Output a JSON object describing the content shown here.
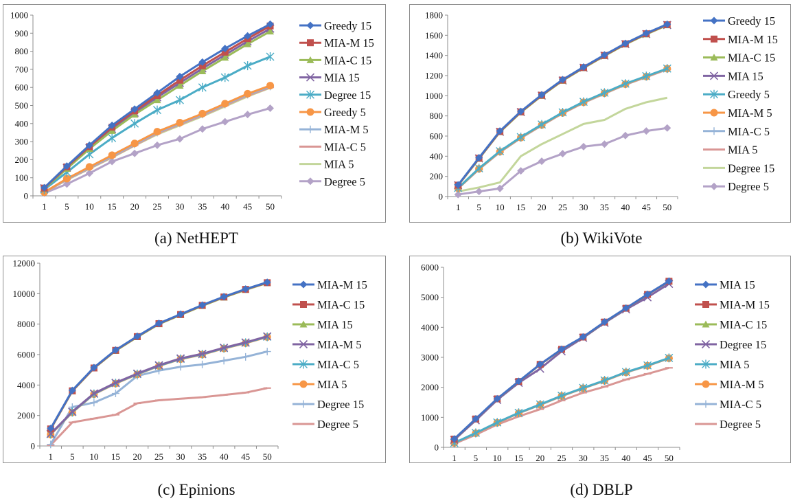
{
  "colors": {
    "blue": "#4472c4",
    "red": "#c0504d",
    "green": "#9bbb59",
    "purple": "#8064a2",
    "cyan": "#4bacc6",
    "orange": "#f79646",
    "lightblue": "#95b3d7",
    "pink": "#d99694",
    "lightgreen": "#c3d69b",
    "lavender": "#b3a2c7",
    "axis": "#8c8c8c"
  },
  "captions": [
    "(a) NetHEPT",
    "(b) WikiVote",
    "(c) Epinions",
    "(d) DBLP"
  ],
  "chart_data": [
    {
      "type": "line",
      "x": [
        "1",
        "5",
        "10",
        "15",
        "20",
        "25",
        "30",
        "35",
        "40",
        "45",
        "50"
      ],
      "ylim": [
        0,
        1000
      ],
      "yticks": [
        0,
        100,
        200,
        300,
        400,
        500,
        600,
        700,
        800,
        900,
        1000
      ],
      "legend_position": "right",
      "series": [
        {
          "name": "Greedy 15",
          "color": "blue",
          "marker": "diamond",
          "values": [
            45,
            165,
            280,
            390,
            480,
            570,
            660,
            740,
            815,
            885,
            950
          ]
        },
        {
          "name": "MIA-M 15",
          "color": "red",
          "marker": "square",
          "values": [
            43,
            160,
            272,
            380,
            470,
            555,
            640,
            720,
            795,
            870,
            940
          ]
        },
        {
          "name": "MIA-C 15",
          "color": "green",
          "marker": "triangle",
          "values": [
            40,
            150,
            260,
            360,
            450,
            530,
            610,
            690,
            765,
            840,
            910
          ]
        },
        {
          "name": "MIA 15",
          "color": "purple",
          "marker": "x",
          "values": [
            42,
            155,
            265,
            370,
            460,
            545,
            625,
            705,
            780,
            855,
            925
          ]
        },
        {
          "name": "Degree 15",
          "color": "cyan",
          "marker": "star",
          "values": [
            35,
            130,
            230,
            320,
            400,
            475,
            530,
            600,
            655,
            720,
            770
          ]
        },
        {
          "name": "Greedy 5",
          "color": "orange",
          "marker": "circle",
          "values": [
            20,
            95,
            160,
            225,
            290,
            355,
            405,
            455,
            510,
            565,
            610
          ]
        },
        {
          "name": "MIA-M 5",
          "color": "lightblue",
          "marker": "plus",
          "values": [
            20,
            92,
            155,
            220,
            285,
            350,
            400,
            450,
            505,
            560,
            605
          ]
        },
        {
          "name": "MIA-C 5",
          "color": "pink",
          "marker": "dash",
          "values": [
            18,
            90,
            152,
            215,
            280,
            345,
            395,
            445,
            500,
            555,
            600
          ]
        },
        {
          "name": "MIA 5",
          "color": "lightgreen",
          "marker": "none",
          "values": [
            18,
            88,
            150,
            212,
            278,
            340,
            390,
            440,
            495,
            550,
            598
          ]
        },
        {
          "name": "Degree 5",
          "color": "lavender",
          "marker": "diamond",
          "values": [
            15,
            65,
            125,
            190,
            235,
            280,
            315,
            370,
            410,
            450,
            485
          ]
        }
      ]
    },
    {
      "type": "line",
      "x": [
        "1",
        "5",
        "10",
        "15",
        "20",
        "25",
        "30",
        "35",
        "40",
        "45",
        "50"
      ],
      "ylim": [
        0,
        1800
      ],
      "yticks": [
        0,
        200,
        400,
        600,
        800,
        1000,
        1200,
        1400,
        1600,
        1800
      ],
      "legend_position": "right",
      "series": [
        {
          "name": "Greedy 15",
          "color": "blue",
          "marker": "diamond",
          "values": [
            115,
            385,
            650,
            845,
            1010,
            1160,
            1285,
            1405,
            1520,
            1620,
            1710
          ]
        },
        {
          "name": "MIA-M 15",
          "color": "red",
          "marker": "square",
          "values": [
            113,
            380,
            645,
            840,
            1005,
            1155,
            1280,
            1400,
            1515,
            1615,
            1705
          ]
        },
        {
          "name": "MIA-C 15",
          "color": "green",
          "marker": "triangle",
          "values": [
            110,
            375,
            640,
            835,
            1000,
            1150,
            1275,
            1395,
            1510,
            1610,
            1700
          ]
        },
        {
          "name": "MIA 15",
          "color": "purple",
          "marker": "x",
          "values": [
            112,
            378,
            642,
            838,
            1002,
            1152,
            1278,
            1398,
            1512,
            1612,
            1702
          ]
        },
        {
          "name": "Greedy 5",
          "color": "cyan",
          "marker": "star",
          "values": [
            85,
            280,
            450,
            590,
            715,
            835,
            940,
            1030,
            1120,
            1195,
            1270
          ]
        },
        {
          "name": "MIA-M 5",
          "color": "orange",
          "marker": "circle",
          "values": [
            82,
            275,
            445,
            585,
            710,
            830,
            935,
            1025,
            1115,
            1190,
            1268
          ]
        },
        {
          "name": "MIA-C 5",
          "color": "lightblue",
          "marker": "plus",
          "values": [
            80,
            272,
            442,
            582,
            708,
            828,
            932,
            1022,
            1112,
            1188,
            1265
          ]
        },
        {
          "name": "MIA 5",
          "color": "pink",
          "marker": "dash",
          "values": [
            80,
            270,
            440,
            580,
            705,
            825,
            930,
            1020,
            1110,
            1185,
            1262
          ]
        },
        {
          "name": "Degree 15",
          "color": "lightgreen",
          "marker": "none",
          "values": [
            50,
            90,
            140,
            400,
            520,
            620,
            720,
            760,
            870,
            935,
            980
          ]
        },
        {
          "name": "Degree 5",
          "color": "lavender",
          "marker": "diamond",
          "values": [
            20,
            50,
            80,
            255,
            350,
            425,
            495,
            520,
            605,
            650,
            680
          ]
        }
      ]
    },
    {
      "type": "line",
      "x": [
        "1",
        "5",
        "10",
        "15",
        "20",
        "25",
        "30",
        "35",
        "40",
        "45",
        "50"
      ],
      "ylim": [
        0,
        12000
      ],
      "yticks": [
        0,
        2000,
        4000,
        6000,
        8000,
        10000,
        12000
      ],
      "legend_position": "right",
      "series": [
        {
          "name": "MIA-M 15",
          "color": "blue",
          "marker": "diamond",
          "values": [
            1150,
            3650,
            5150,
            6300,
            7200,
            8050,
            8650,
            9250,
            9800,
            10300,
            10750
          ]
        },
        {
          "name": "MIA-C 15",
          "color": "red",
          "marker": "square",
          "values": [
            1120,
            3620,
            5120,
            6280,
            7180,
            8030,
            8630,
            9230,
            9780,
            10280,
            10720
          ]
        },
        {
          "name": "MIA 15",
          "color": "green",
          "marker": "triangle",
          "values": [
            1100,
            3600,
            5100,
            6250,
            7150,
            8000,
            8600,
            9200,
            9750,
            10250,
            10700
          ]
        },
        {
          "name": "MIA-M 5",
          "color": "purple",
          "marker": "x",
          "values": [
            800,
            2250,
            3450,
            4150,
            4750,
            5300,
            5750,
            6050,
            6450,
            6800,
            7200
          ]
        },
        {
          "name": "MIA-C 5",
          "color": "cyan",
          "marker": "star",
          "values": [
            780,
            2220,
            3420,
            4120,
            4720,
            5270,
            5720,
            6020,
            6420,
            6770,
            7170
          ]
        },
        {
          "name": "MIA 5",
          "color": "orange",
          "marker": "circle",
          "values": [
            750,
            2200,
            3400,
            4100,
            4700,
            5250,
            5700,
            6000,
            6400,
            6750,
            7150
          ]
        },
        {
          "name": "Degree 15",
          "color": "lightblue",
          "marker": "plus",
          "values": [
            100,
            2550,
            2850,
            3450,
            4600,
            4950,
            5200,
            5350,
            5600,
            5850,
            6200
          ]
        },
        {
          "name": "Degree 5",
          "color": "pink",
          "marker": "dash",
          "values": [
            50,
            1550,
            1800,
            2050,
            2800,
            3000,
            3100,
            3200,
            3350,
            3500,
            3800
          ]
        }
      ]
    },
    {
      "type": "line",
      "x": [
        "1",
        "5",
        "10",
        "15",
        "20",
        "25",
        "30",
        "35",
        "40",
        "45",
        "50"
      ],
      "ylim": [
        0,
        6000
      ],
      "yticks": [
        0,
        1000,
        2000,
        3000,
        4000,
        5000,
        6000
      ],
      "legend_position": "right",
      "series": [
        {
          "name": "MIA 15",
          "color": "blue",
          "marker": "diamond",
          "values": [
            280,
            950,
            1620,
            2200,
            2770,
            3270,
            3680,
            4180,
            4640,
            5100,
            5540
          ]
        },
        {
          "name": "MIA-M 15",
          "color": "red",
          "marker": "square",
          "values": [
            275,
            945,
            1615,
            2195,
            2765,
            3265,
            3675,
            4175,
            4635,
            5095,
            5535
          ]
        },
        {
          "name": "MIA-C 15",
          "color": "green",
          "marker": "triangle",
          "values": [
            270,
            940,
            1610,
            2190,
            2760,
            3260,
            3670,
            4170,
            4630,
            5090,
            5530
          ]
        },
        {
          "name": "Degree 15",
          "color": "purple",
          "marker": "x",
          "values": [
            250,
            900,
            1580,
            2150,
            2620,
            3200,
            3650,
            4150,
            4600,
            5000,
            5450
          ]
        },
        {
          "name": "MIA 5",
          "color": "cyan",
          "marker": "star",
          "values": [
            150,
            480,
            830,
            1150,
            1430,
            1720,
            1980,
            2230,
            2510,
            2730,
            2980
          ]
        },
        {
          "name": "MIA-M 5",
          "color": "orange",
          "marker": "circle",
          "values": [
            145,
            470,
            820,
            1140,
            1420,
            1710,
            1970,
            2220,
            2500,
            2720,
            2970
          ]
        },
        {
          "name": "MIA-C 5",
          "color": "lightblue",
          "marker": "plus",
          "values": [
            140,
            465,
            815,
            1135,
            1415,
            1705,
            1965,
            2215,
            2495,
            2715,
            2965
          ]
        },
        {
          "name": "Degree 5",
          "color": "pink",
          "marker": "dash",
          "values": [
            120,
            420,
            760,
            1030,
            1270,
            1560,
            1820,
            2020,
            2260,
            2450,
            2650
          ]
        }
      ]
    }
  ]
}
